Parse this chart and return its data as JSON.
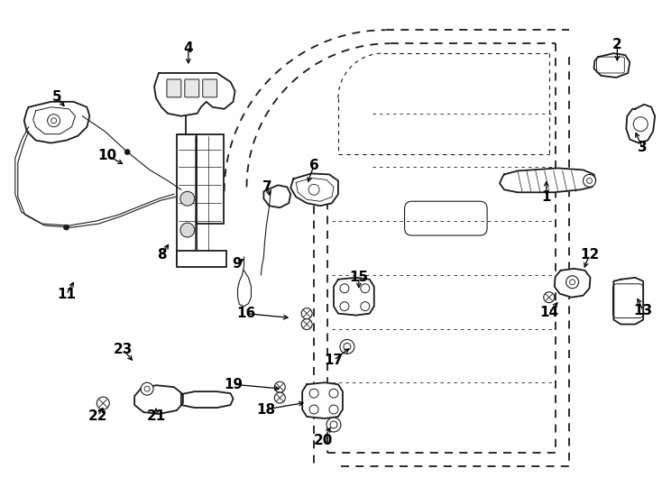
{
  "bg_color": "#ffffff",
  "line_color": "#1a1a1a",
  "parts_labels": [
    [
      "1",
      607,
      218,
      607,
      197
    ],
    [
      "2",
      686,
      48,
      686,
      70
    ],
    [
      "3",
      714,
      163,
      705,
      143
    ],
    [
      "4",
      208,
      52,
      208,
      73
    ],
    [
      "5",
      62,
      107,
      72,
      120
    ],
    [
      "6",
      348,
      183,
      340,
      205
    ],
    [
      "7",
      296,
      207,
      300,
      220
    ],
    [
      "8",
      178,
      283,
      188,
      268
    ],
    [
      "9",
      262,
      293,
      272,
      285
    ],
    [
      "10",
      118,
      172,
      138,
      183
    ],
    [
      "11",
      72,
      327,
      82,
      310
    ],
    [
      "12",
      655,
      283,
      648,
      300
    ],
    [
      "13",
      715,
      345,
      707,
      328
    ],
    [
      "14",
      610,
      347,
      622,
      333
    ],
    [
      "15",
      398,
      308,
      398,
      323
    ],
    [
      "16",
      272,
      348,
      323,
      353
    ],
    [
      "17",
      370,
      400,
      390,
      385
    ],
    [
      "18",
      294,
      455,
      340,
      447
    ],
    [
      "19",
      258,
      427,
      313,
      432
    ],
    [
      "20",
      358,
      490,
      368,
      472
    ],
    [
      "21",
      172,
      462,
      172,
      450
    ],
    [
      "22",
      107,
      462,
      115,
      450
    ],
    [
      "23",
      135,
      388,
      148,
      403
    ]
  ]
}
